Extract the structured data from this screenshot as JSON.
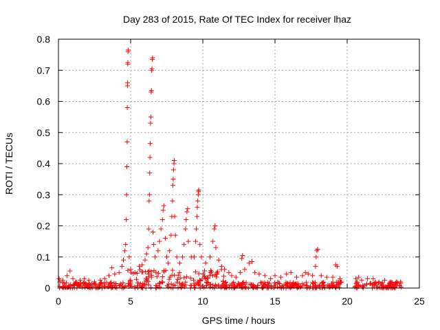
{
  "chart_data": {
    "type": "scatter",
    "title": "Day 283 of 2015, Rate Of TEC Index for receiver lhaz",
    "xlabel": "GPS time / hours",
    "ylabel": "ROTI / TECUs",
    "xlim": [
      0,
      25
    ],
    "ylim": [
      0,
      0.8
    ],
    "xticks": [
      "0",
      "5",
      "10",
      "15",
      "20",
      "25"
    ],
    "yticks": [
      "0",
      "0.1",
      "0.2",
      "0.3",
      "0.4",
      "0.5",
      "0.6",
      "0.7",
      "0.8"
    ],
    "grid": true,
    "marker": "plus",
    "color": "#ff0000",
    "points": [
      [
        0.05,
        0.03
      ],
      [
        0.1,
        0.02
      ],
      [
        0.3,
        0.025
      ],
      [
        0.6,
        0.04
      ],
      [
        0.8,
        0.055
      ],
      [
        1.0,
        0.03
      ],
      [
        1.2,
        0.02
      ],
      [
        1.5,
        0.025
      ],
      [
        1.8,
        0.03
      ],
      [
        2.1,
        0.025
      ],
      [
        2.5,
        0.02
      ],
      [
        2.9,
        0.025
      ],
      [
        3.2,
        0.03
      ],
      [
        3.5,
        0.04
      ],
      [
        3.7,
        0.065
      ],
      [
        3.9,
        0.045
      ],
      [
        4.2,
        0.05
      ],
      [
        4.4,
        0.07
      ],
      [
        4.5,
        0.09
      ],
      [
        4.6,
        0.12
      ],
      [
        4.65,
        0.14
      ],
      [
        4.7,
        0.22
      ],
      [
        4.72,
        0.3
      ],
      [
        4.74,
        0.39
      ],
      [
        4.76,
        0.47
      ],
      [
        4.77,
        0.58
      ],
      [
        4.78,
        0.65
      ],
      [
        4.79,
        0.66
      ],
      [
        4.8,
        0.72
      ],
      [
        4.81,
        0.725
      ],
      [
        4.82,
        0.76
      ],
      [
        4.83,
        0.765
      ],
      [
        4.9,
        0.1
      ],
      [
        5.0,
        0.06
      ],
      [
        5.3,
        0.05
      ],
      [
        5.6,
        0.07
      ],
      [
        5.8,
        0.075
      ],
      [
        6.0,
        0.09
      ],
      [
        6.1,
        0.11
      ],
      [
        6.2,
        0.13
      ],
      [
        6.25,
        0.19
      ],
      [
        6.28,
        0.28
      ],
      [
        6.3,
        0.3
      ],
      [
        6.32,
        0.37
      ],
      [
        6.34,
        0.42
      ],
      [
        6.36,
        0.465
      ],
      [
        6.38,
        0.53
      ],
      [
        6.4,
        0.55
      ],
      [
        6.42,
        0.63
      ],
      [
        6.44,
        0.635
      ],
      [
        6.46,
        0.7
      ],
      [
        6.48,
        0.705
      ],
      [
        6.5,
        0.735
      ],
      [
        6.52,
        0.74
      ],
      [
        6.55,
        0.18
      ],
      [
        6.6,
        0.14
      ],
      [
        6.7,
        0.1
      ],
      [
        6.9,
        0.12
      ],
      [
        7.0,
        0.15
      ],
      [
        7.1,
        0.19
      ],
      [
        7.2,
        0.22
      ],
      [
        7.25,
        0.25
      ],
      [
        7.3,
        0.265
      ],
      [
        7.4,
        0.16
      ],
      [
        7.5,
        0.1
      ],
      [
        7.6,
        0.08
      ],
      [
        7.7,
        0.12
      ],
      [
        7.8,
        0.17
      ],
      [
        7.85,
        0.23
      ],
      [
        7.9,
        0.28
      ],
      [
        7.92,
        0.33
      ],
      [
        7.95,
        0.35
      ],
      [
        7.97,
        0.38
      ],
      [
        8.0,
        0.4
      ],
      [
        8.02,
        0.41
      ],
      [
        8.05,
        0.23
      ],
      [
        8.1,
        0.17
      ],
      [
        8.2,
        0.1
      ],
      [
        8.4,
        0.08
      ],
      [
        8.6,
        0.1
      ],
      [
        8.7,
        0.14
      ],
      [
        8.8,
        0.19
      ],
      [
        8.85,
        0.22
      ],
      [
        8.9,
        0.245
      ],
      [
        8.95,
        0.255
      ],
      [
        9.0,
        0.15
      ],
      [
        9.2,
        0.1
      ],
      [
        9.4,
        0.1
      ],
      [
        9.5,
        0.15
      ],
      [
        9.55,
        0.19
      ],
      [
        9.6,
        0.23
      ],
      [
        9.62,
        0.26
      ],
      [
        9.65,
        0.28
      ],
      [
        9.68,
        0.3
      ],
      [
        9.7,
        0.31
      ],
      [
        9.72,
        0.315
      ],
      [
        9.8,
        0.14
      ],
      [
        9.9,
        0.1
      ],
      [
        10.2,
        0.08
      ],
      [
        10.5,
        0.1
      ],
      [
        10.7,
        0.15
      ],
      [
        10.8,
        0.19
      ],
      [
        10.85,
        0.2
      ],
      [
        10.9,
        0.13
      ],
      [
        11.1,
        0.09
      ],
      [
        11.3,
        0.07
      ],
      [
        11.5,
        0.06
      ],
      [
        11.8,
        0.05
      ],
      [
        12.0,
        0.04
      ],
      [
        12.3,
        0.035
      ],
      [
        12.6,
        0.05
      ],
      [
        12.7,
        0.095
      ],
      [
        12.75,
        0.105
      ],
      [
        12.9,
        0.06
      ],
      [
        13.2,
        0.08
      ],
      [
        13.4,
        0.085
      ],
      [
        13.6,
        0.05
      ],
      [
        13.9,
        0.045
      ],
      [
        14.3,
        0.04
      ],
      [
        14.7,
        0.03
      ],
      [
        15.0,
        0.04
      ],
      [
        15.4,
        0.035
      ],
      [
        15.8,
        0.045
      ],
      [
        16.1,
        0.05
      ],
      [
        16.5,
        0.035
      ],
      [
        16.9,
        0.04
      ],
      [
        17.1,
        0.05
      ],
      [
        17.3,
        0.045
      ],
      [
        17.6,
        0.04
      ],
      [
        17.8,
        0.07
      ],
      [
        17.85,
        0.1
      ],
      [
        17.9,
        0.12
      ],
      [
        17.95,
        0.125
      ],
      [
        18.2,
        0.04
      ],
      [
        18.6,
        0.035
      ],
      [
        19.0,
        0.035
      ],
      [
        19.2,
        0.075
      ],
      [
        19.3,
        0.07
      ],
      [
        19.5,
        0.03
      ],
      [
        20.6,
        0.03
      ],
      [
        20.8,
        0.035
      ],
      [
        21.0,
        0.025
      ],
      [
        21.4,
        0.03
      ],
      [
        21.8,
        0.03
      ],
      [
        22.2,
        0.02
      ],
      [
        22.6,
        0.025
      ],
      [
        23.0,
        0.02
      ],
      [
        23.4,
        0.02
      ],
      [
        23.7,
        0.02
      ]
    ],
    "dense_bands": [
      {
        "x": [
          0.0,
          4.5
        ],
        "y": [
          0.0,
          0.02
        ]
      },
      {
        "x": [
          4.5,
          11.5
        ],
        "y": [
          0.0,
          0.06
        ]
      },
      {
        "x": [
          11.5,
          19.6
        ],
        "y": [
          0.0,
          0.02
        ]
      },
      {
        "x": [
          20.5,
          23.8
        ],
        "y": [
          0.0,
          0.02
        ]
      }
    ]
  }
}
